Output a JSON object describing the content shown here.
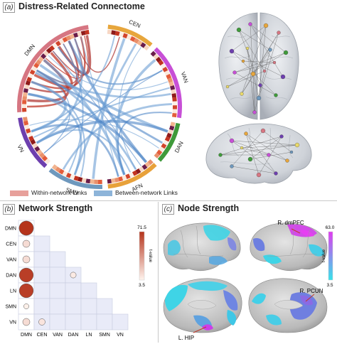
{
  "panel_a": {
    "tag": "(a)",
    "title": "Distress-Related Connectome",
    "networks": [
      {
        "label": "CEN",
        "color": "#e7a63c"
      },
      {
        "label": "VAN",
        "color": "#c74fd6"
      },
      {
        "label": "DAN",
        "color": "#3f9a3a"
      },
      {
        "label": "AFN",
        "color": "#e8a13a"
      },
      {
        "label": "SMN",
        "color": "#6e98bd"
      },
      {
        "label": "VN",
        "color": "#6d3fae"
      },
      {
        "label": "DMN",
        "color": "#d67682"
      }
    ],
    "legend": {
      "within_label": "Within-network Links",
      "within_color": "#e7a09b",
      "between_label": "Between-network Links",
      "between_color": "#8db4d9"
    }
  },
  "panel_b": {
    "tag": "(b)",
    "title": "Network Strength",
    "rows": [
      "DMN",
      "CEN",
      "VAN",
      "DAN",
      "LN",
      "SMN",
      "VN"
    ],
    "cols": [
      "DMN",
      "CEN",
      "VAN",
      "DAN",
      "LN",
      "SMN",
      "VN"
    ],
    "values": [
      [
        71.5
      ],
      [
        12,
        null
      ],
      [
        12,
        null,
        null
      ],
      [
        68,
        null,
        null,
        7
      ],
      [
        68,
        null,
        null,
        null,
        null
      ],
      [
        5,
        null,
        null,
        null,
        null,
        null
      ],
      [
        12,
        9,
        null,
        null,
        null,
        null,
        null
      ]
    ],
    "colorbar": {
      "max_label": "71.5",
      "min_label": "3.5",
      "label": "t-value",
      "color_high": "#b5341c",
      "color_low": "#fff4ee"
    }
  },
  "panel_c": {
    "tag": "(c)",
    "title": "Node Strength",
    "annotations": [
      "R. dmPFC",
      "R. PCUN",
      "L. HIP"
    ],
    "colorbar": {
      "max_label": "63.0",
      "min_label": "3.5",
      "label": "t-value",
      "color_high": "#e03cf0",
      "color_low": "#35e3ea"
    }
  }
}
